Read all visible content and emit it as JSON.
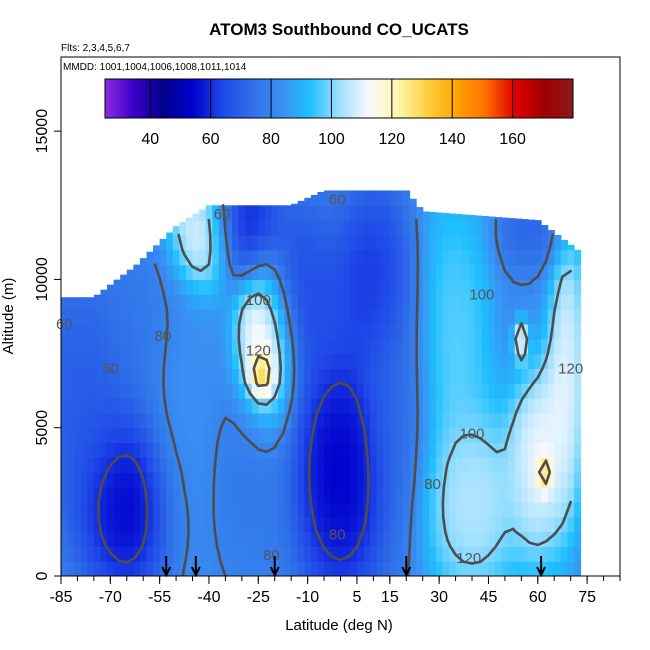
{
  "chart_data": {
    "type": "heatmap",
    "title": "ATOM3 Southbound CO_UCATS",
    "subtitle_flights": "Flts: 2,3,4,5,6,7",
    "subtitle_dates": "MMDD: 1001,1004,1006,1008,1011,1014",
    "xlabel": "Latitude (deg N)",
    "ylabel": "Altitude (m)",
    "xlim": [
      -85,
      85
    ],
    "ylim": [
      0,
      17500
    ],
    "x_ticks": [
      -85,
      -70,
      -55,
      -40,
      -25,
      -10,
      5,
      15,
      30,
      45,
      60,
      75
    ],
    "x_tick_labels": [
      "-85",
      "-70",
      "-55",
      "-40",
      "-25",
      "-10",
      "5",
      "15",
      "30",
      "45",
      "60",
      "75"
    ],
    "y_ticks": [
      0,
      5000,
      10000,
      15000
    ],
    "y_tick_labels": [
      "0",
      "5000",
      "10000",
      "15000"
    ],
    "colorbar": {
      "range": [
        25,
        180
      ],
      "ticks": [
        40,
        60,
        80,
        100,
        120,
        140,
        160
      ],
      "tick_labels": [
        "40",
        "60",
        "80",
        "100",
        "120",
        "140",
        "160"
      ],
      "colors": [
        "#8a2be2",
        "#3a00c8",
        "#00008b",
        "#0000cd",
        "#1f48e8",
        "#2f6fe8",
        "#3a8ef2",
        "#1fbfff",
        "#9fe0ff",
        "#f8f8ff",
        "#fff8b0",
        "#ffd040",
        "#ffa500",
        "#ff7000",
        "#e00000",
        "#a00000",
        "#8b1a1a"
      ]
    },
    "profile_markers_lat": [
      -53,
      -44,
      -20,
      20,
      61
    ],
    "contour_levels": [
      60,
      80,
      100,
      120
    ],
    "contour_labels": [
      {
        "text": "60",
        "lat": -36,
        "alt": 12200
      },
      {
        "text": "60",
        "lat": -1,
        "alt": 12700
      },
      {
        "text": "60",
        "lat": -70,
        "alt": 7000
      },
      {
        "text": "60",
        "lat": -84,
        "alt": 8500
      },
      {
        "text": "80",
        "lat": -54,
        "alt": 8100
      },
      {
        "text": "80",
        "lat": -1,
        "alt": 1400
      },
      {
        "text": "80",
        "lat": -21,
        "alt": 700
      },
      {
        "text": "80",
        "lat": 28,
        "alt": 3100
      },
      {
        "text": "100",
        "lat": -25,
        "alt": 9300
      },
      {
        "text": "100",
        "lat": 43,
        "alt": 9500
      },
      {
        "text": "100",
        "lat": 40,
        "alt": 4800
      },
      {
        "text": "120",
        "lat": -25,
        "alt": 7600
      },
      {
        "text": "120",
        "lat": 70,
        "alt": 7000
      },
      {
        "text": "120",
        "lat": 39,
        "alt": 600
      }
    ],
    "field_blobs": [
      {
        "lat": -78,
        "alt": 6000,
        "r_lat": 14,
        "r_alt": 3500,
        "value": 65
      },
      {
        "lat": -65,
        "alt": 2500,
        "r_lat": 12,
        "r_alt": 2500,
        "value": 45
      },
      {
        "lat": -60,
        "alt": 8500,
        "r_lat": 10,
        "r_alt": 2500,
        "value": 75
      },
      {
        "lat": -48,
        "alt": 5500,
        "r_lat": 9,
        "r_alt": 4500,
        "value": 85
      },
      {
        "lat": -42,
        "alt": 11500,
        "r_lat": 8,
        "r_alt": 1500,
        "value": 125
      },
      {
        "lat": -30,
        "alt": 11800,
        "r_lat": 9,
        "r_alt": 1500,
        "value": 50
      },
      {
        "lat": -23,
        "alt": 7800,
        "r_lat": 7,
        "r_alt": 2200,
        "value": 135
      },
      {
        "lat": -24,
        "alt": 6800,
        "r_lat": 3,
        "r_alt": 600,
        "value": 160
      },
      {
        "lat": -28,
        "alt": 3500,
        "r_lat": 10,
        "r_alt": 3000,
        "value": 75
      },
      {
        "lat": -12,
        "alt": 9500,
        "r_lat": 10,
        "r_alt": 2500,
        "value": 60
      },
      {
        "lat": 0,
        "alt": 3500,
        "r_lat": 12,
        "r_alt": 3500,
        "value": 45
      },
      {
        "lat": 10,
        "alt": 10000,
        "r_lat": 10,
        "r_alt": 2500,
        "value": 55
      },
      {
        "lat": 18,
        "alt": 6000,
        "r_lat": 8,
        "r_alt": 4000,
        "value": 70
      },
      {
        "lat": 34,
        "alt": 8000,
        "r_lat": 10,
        "r_alt": 4000,
        "value": 102
      },
      {
        "lat": 40,
        "alt": 2500,
        "r_lat": 12,
        "r_alt": 2500,
        "value": 112
      },
      {
        "lat": 57,
        "alt": 9000,
        "r_lat": 7,
        "r_alt": 2500,
        "value": 80
      },
      {
        "lat": 55,
        "alt": 8000,
        "r_lat": 2,
        "r_alt": 600,
        "value": 145
      },
      {
        "lat": 60,
        "alt": 4500,
        "r_lat": 7,
        "r_alt": 3000,
        "value": 120
      },
      {
        "lat": 62,
        "alt": 3500,
        "r_lat": 2,
        "r_alt": 500,
        "value": 150
      },
      {
        "lat": 68,
        "alt": 7000,
        "r_lat": 5,
        "r_alt": 4000,
        "value": 118
      },
      {
        "lat": 58,
        "alt": 11500,
        "r_lat": 8,
        "r_alt": 1200,
        "value": 65
      }
    ],
    "field_background": 82,
    "domain_top_by_lat": [
      {
        "lat": -75,
        "alt": 9400
      },
      {
        "lat": -62,
        "alt": 10500
      },
      {
        "lat": -50,
        "alt": 11800
      },
      {
        "lat": -40,
        "alt": 12500
      },
      {
        "lat": -15,
        "alt": 12500
      },
      {
        "lat": -5,
        "alt": 13000
      },
      {
        "lat": 20,
        "alt": 13000
      },
      {
        "lat": 25,
        "alt": 12300
      },
      {
        "lat": 60,
        "alt": 12000
      },
      {
        "lat": 72,
        "alt": 11000
      }
    ],
    "domain_lat_range": [
      -85,
      72
    ]
  }
}
